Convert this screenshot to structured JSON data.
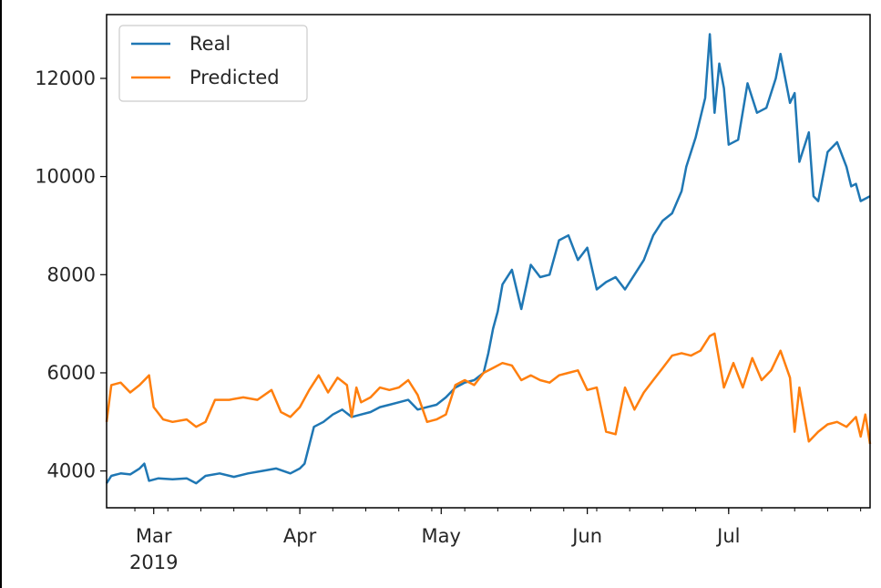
{
  "chart_data": {
    "type": "line",
    "title": "",
    "xlabel": "",
    "ylabel": "",
    "xlim": [
      "2019-02-19",
      "2019-07-31"
    ],
    "ylim": [
      3250,
      13300
    ],
    "grid": false,
    "legend": "upper-left",
    "yticks": [
      4000,
      6000,
      8000,
      10000,
      12000
    ],
    "ytick_labels": [
      "4000",
      "6000",
      "8000",
      "10000",
      "12000"
    ],
    "xticks": [
      {
        "date": "2019-03-01",
        "label": "Mar",
        "sublabel": "2019"
      },
      {
        "date": "2019-04-01",
        "label": "Apr",
        "sublabel": ""
      },
      {
        "date": "2019-05-01",
        "label": "May",
        "sublabel": ""
      },
      {
        "date": "2019-06-01",
        "label": "Jun",
        "sublabel": ""
      },
      {
        "date": "2019-07-01",
        "label": "Jul",
        "sublabel": ""
      }
    ],
    "series": [
      {
        "name": "Real",
        "color": "#1f77b4",
        "points": [
          [
            "2019-02-19",
            3750
          ],
          [
            "2019-02-20",
            3900
          ],
          [
            "2019-02-22",
            3950
          ],
          [
            "2019-02-24",
            3930
          ],
          [
            "2019-02-26",
            4050
          ],
          [
            "2019-02-27",
            4150
          ],
          [
            "2019-02-28",
            3800
          ],
          [
            "2019-03-02",
            3850
          ],
          [
            "2019-03-05",
            3830
          ],
          [
            "2019-03-08",
            3850
          ],
          [
            "2019-03-10",
            3750
          ],
          [
            "2019-03-12",
            3900
          ],
          [
            "2019-03-15",
            3950
          ],
          [
            "2019-03-18",
            3880
          ],
          [
            "2019-03-21",
            3950
          ],
          [
            "2019-03-24",
            4000
          ],
          [
            "2019-03-27",
            4050
          ],
          [
            "2019-03-30",
            3950
          ],
          [
            "2019-04-01",
            4050
          ],
          [
            "2019-04-02",
            4150
          ],
          [
            "2019-04-04",
            4900
          ],
          [
            "2019-04-06",
            5000
          ],
          [
            "2019-04-08",
            5150
          ],
          [
            "2019-04-10",
            5250
          ],
          [
            "2019-04-12",
            5100
          ],
          [
            "2019-04-14",
            5150
          ],
          [
            "2019-04-16",
            5200
          ],
          [
            "2019-04-18",
            5300
          ],
          [
            "2019-04-20",
            5350
          ],
          [
            "2019-04-22",
            5400
          ],
          [
            "2019-04-24",
            5450
          ],
          [
            "2019-04-26",
            5250
          ],
          [
            "2019-04-28",
            5300
          ],
          [
            "2019-04-30",
            5350
          ],
          [
            "2019-05-02",
            5500
          ],
          [
            "2019-05-04",
            5700
          ],
          [
            "2019-05-06",
            5800
          ],
          [
            "2019-05-08",
            5850
          ],
          [
            "2019-05-10",
            6000
          ],
          [
            "2019-05-11",
            6400
          ],
          [
            "2019-05-12",
            6900
          ],
          [
            "2019-05-13",
            7250
          ],
          [
            "2019-05-14",
            7800
          ],
          [
            "2019-05-16",
            8100
          ],
          [
            "2019-05-18",
            7300
          ],
          [
            "2019-05-20",
            8200
          ],
          [
            "2019-05-22",
            7950
          ],
          [
            "2019-05-24",
            8000
          ],
          [
            "2019-05-26",
            8700
          ],
          [
            "2019-05-28",
            8800
          ],
          [
            "2019-05-30",
            8300
          ],
          [
            "2019-06-01",
            8550
          ],
          [
            "2019-06-03",
            7700
          ],
          [
            "2019-06-05",
            7850
          ],
          [
            "2019-06-07",
            7950
          ],
          [
            "2019-06-09",
            7700
          ],
          [
            "2019-06-11",
            8000
          ],
          [
            "2019-06-13",
            8300
          ],
          [
            "2019-06-15",
            8800
          ],
          [
            "2019-06-17",
            9100
          ],
          [
            "2019-06-19",
            9250
          ],
          [
            "2019-06-21",
            9700
          ],
          [
            "2019-06-22",
            10200
          ],
          [
            "2019-06-24",
            10800
          ],
          [
            "2019-06-25",
            11200
          ],
          [
            "2019-06-26",
            11600
          ],
          [
            "2019-06-27",
            12900
          ],
          [
            "2019-06-28",
            11300
          ],
          [
            "2019-06-29",
            12300
          ],
          [
            "2019-06-30",
            11800
          ],
          [
            "2019-07-01",
            10650
          ],
          [
            "2019-07-03",
            10750
          ],
          [
            "2019-07-05",
            11900
          ],
          [
            "2019-07-07",
            11300
          ],
          [
            "2019-07-09",
            11400
          ],
          [
            "2019-07-11",
            12000
          ],
          [
            "2019-07-12",
            12500
          ],
          [
            "2019-07-14",
            11500
          ],
          [
            "2019-07-15",
            11700
          ],
          [
            "2019-07-16",
            10300
          ],
          [
            "2019-07-18",
            10900
          ],
          [
            "2019-07-19",
            9600
          ],
          [
            "2019-07-20",
            9500
          ],
          [
            "2019-07-22",
            10500
          ],
          [
            "2019-07-24",
            10700
          ],
          [
            "2019-07-26",
            10200
          ],
          [
            "2019-07-27",
            9800
          ],
          [
            "2019-07-28",
            9850
          ],
          [
            "2019-07-29",
            9500
          ],
          [
            "2019-07-31",
            9600
          ]
        ]
      },
      {
        "name": "Predicted",
        "color": "#ff7f0e",
        "points": [
          [
            "2019-02-19",
            5000
          ],
          [
            "2019-02-20",
            5750
          ],
          [
            "2019-02-22",
            5800
          ],
          [
            "2019-02-24",
            5600
          ],
          [
            "2019-02-26",
            5750
          ],
          [
            "2019-02-28",
            5950
          ],
          [
            "2019-03-01",
            5300
          ],
          [
            "2019-03-03",
            5050
          ],
          [
            "2019-03-05",
            5000
          ],
          [
            "2019-03-08",
            5050
          ],
          [
            "2019-03-10",
            4900
          ],
          [
            "2019-03-12",
            5000
          ],
          [
            "2019-03-14",
            5450
          ],
          [
            "2019-03-17",
            5450
          ],
          [
            "2019-03-20",
            5500
          ],
          [
            "2019-03-23",
            5450
          ],
          [
            "2019-03-26",
            5650
          ],
          [
            "2019-03-28",
            5200
          ],
          [
            "2019-03-30",
            5100
          ],
          [
            "2019-04-01",
            5300
          ],
          [
            "2019-04-03",
            5650
          ],
          [
            "2019-04-05",
            5950
          ],
          [
            "2019-04-07",
            5600
          ],
          [
            "2019-04-09",
            5900
          ],
          [
            "2019-04-11",
            5750
          ],
          [
            "2019-04-12",
            5100
          ],
          [
            "2019-04-13",
            5700
          ],
          [
            "2019-04-14",
            5400
          ],
          [
            "2019-04-16",
            5500
          ],
          [
            "2019-04-18",
            5700
          ],
          [
            "2019-04-20",
            5650
          ],
          [
            "2019-04-22",
            5700
          ],
          [
            "2019-04-24",
            5850
          ],
          [
            "2019-04-26",
            5550
          ],
          [
            "2019-04-28",
            5000
          ],
          [
            "2019-04-30",
            5050
          ],
          [
            "2019-05-02",
            5150
          ],
          [
            "2019-05-04",
            5750
          ],
          [
            "2019-05-06",
            5850
          ],
          [
            "2019-05-08",
            5750
          ],
          [
            "2019-05-10",
            6000
          ],
          [
            "2019-05-12",
            6100
          ],
          [
            "2019-05-14",
            6200
          ],
          [
            "2019-05-16",
            6150
          ],
          [
            "2019-05-18",
            5850
          ],
          [
            "2019-05-20",
            5950
          ],
          [
            "2019-05-22",
            5850
          ],
          [
            "2019-05-24",
            5800
          ],
          [
            "2019-05-26",
            5950
          ],
          [
            "2019-05-28",
            6000
          ],
          [
            "2019-05-30",
            6050
          ],
          [
            "2019-06-01",
            5650
          ],
          [
            "2019-06-03",
            5700
          ],
          [
            "2019-06-05",
            4800
          ],
          [
            "2019-06-07",
            4750
          ],
          [
            "2019-06-09",
            5700
          ],
          [
            "2019-06-11",
            5250
          ],
          [
            "2019-06-13",
            5600
          ],
          [
            "2019-06-15",
            5850
          ],
          [
            "2019-06-17",
            6100
          ],
          [
            "2019-06-19",
            6350
          ],
          [
            "2019-06-21",
            6400
          ],
          [
            "2019-06-23",
            6350
          ],
          [
            "2019-06-25",
            6450
          ],
          [
            "2019-06-27",
            6750
          ],
          [
            "2019-06-28",
            6800
          ],
          [
            "2019-06-30",
            5700
          ],
          [
            "2019-07-02",
            6200
          ],
          [
            "2019-07-04",
            5700
          ],
          [
            "2019-07-06",
            6300
          ],
          [
            "2019-07-08",
            5850
          ],
          [
            "2019-07-10",
            6050
          ],
          [
            "2019-07-12",
            6450
          ],
          [
            "2019-07-14",
            5900
          ],
          [
            "2019-07-15",
            4800
          ],
          [
            "2019-07-16",
            5700
          ],
          [
            "2019-07-18",
            4600
          ],
          [
            "2019-07-20",
            4800
          ],
          [
            "2019-07-22",
            4950
          ],
          [
            "2019-07-24",
            5000
          ],
          [
            "2019-07-26",
            4900
          ],
          [
            "2019-07-28",
            5100
          ],
          [
            "2019-07-29",
            4700
          ],
          [
            "2019-07-30",
            5150
          ],
          [
            "2019-07-31",
            4550
          ]
        ]
      }
    ]
  }
}
